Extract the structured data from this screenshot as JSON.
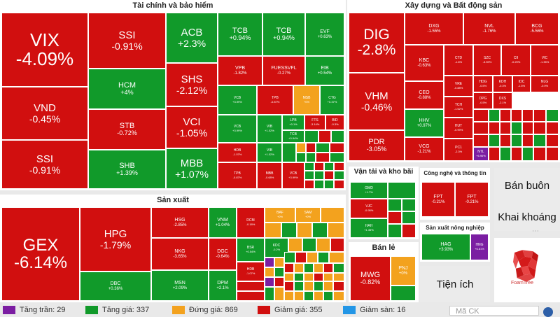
{
  "sections": {
    "finance": "Tài chính và bảo hiểm",
    "realestate": "Xây dựng và Bất động sản",
    "manufacturing": "Sản xuất",
    "transport": "Vận tải và kho bãi",
    "tech": "Công nghệ và thông tin",
    "retail": "Bán lẻ",
    "agri": "Sản xuất nông nghiệp",
    "wholesale": "Bán buôn",
    "mining": "Khai khoáng",
    "utilities": "Tiện ích"
  },
  "tiles": {
    "vix": {
      "t": "VIX",
      "c": "-4.09%"
    },
    "vnd": {
      "t": "VND",
      "c": "-0.45%"
    },
    "ssi1": {
      "t": "SSI",
      "c": "-0.91%"
    },
    "ssi2": {
      "t": "SSI",
      "c": "-0.91%"
    },
    "hcm": {
      "t": "HCM",
      "c": "+4%"
    },
    "stb": {
      "t": "STB",
      "c": "-0.72%"
    },
    "shb": {
      "t": "SHB",
      "c": "+1.39%"
    },
    "acb": {
      "t": "ACB",
      "c": "+2.3%"
    },
    "shs": {
      "t": "SHS",
      "c": "-2.12%"
    },
    "vci": {
      "t": "VCI",
      "c": "-1.05%"
    },
    "mbb": {
      "t": "MBB",
      "c": "+1.07%"
    },
    "tcb1": {
      "t": "TCB",
      "c": "+0.94%"
    },
    "tcb2": {
      "t": "TCB",
      "c": "+0.94%"
    },
    "evf": {
      "t": "EVF",
      "c": "+0.63%"
    },
    "vpb": {
      "t": "VPB",
      "c": "-1.82%"
    },
    "fuessvfl": {
      "t": "FUESSVFL",
      "c": "-0.27%"
    },
    "eib": {
      "t": "EIB",
      "c": "+0.54%"
    },
    "vcb1": {
      "t": "VCB",
      "c": "+3.99%"
    },
    "tpb1": {
      "t": "TPB",
      "c": "-0.87%"
    },
    "msb": {
      "t": "MSB",
      "c": "+0%"
    },
    "ctg": {
      "t": "CTG",
      "c": "+0.37%"
    },
    "vcb2": {
      "t": "VCB",
      "c": "+3.99%"
    },
    "vib": {
      "t": "VIB",
      "c": "+1.02%"
    },
    "lpb": {
      "t": "LPB",
      "c": "+0.1%"
    },
    "fts": {
      "t": "FTS",
      "c": "-3.14%"
    },
    "bid": {
      "t": "BID",
      "c": "-0.3%"
    },
    "tcb3": {
      "t": "TCB",
      "c": "+0.94%"
    },
    "vib2": {
      "t": "VIB",
      "c": "+1.02%"
    },
    "hdb": {
      "t": "HDB",
      "c": "-1.07%"
    },
    "tpb2": {
      "t": "TPB",
      "c": "-0.87%"
    },
    "mbb2": {
      "t": "MBB",
      "c": "-0.68%"
    },
    "vcb3": {
      "t": "VCB",
      "c": "+3.99%"
    },
    "dig": {
      "t": "DIG",
      "c": "-2.8%"
    },
    "vhm": {
      "t": "VHM",
      "c": "-0.46%"
    },
    "pdr": {
      "t": "PDR",
      "c": "-3.05%"
    },
    "dxg": {
      "t": "DXG",
      "c": "-1.55%"
    },
    "nvl": {
      "t": "NVL",
      "c": "-1.76%"
    },
    "bcg": {
      "t": "BCG",
      "c": "-5.56%"
    },
    "kbc": {
      "t": "KBC",
      "c": "-0.63%"
    },
    "ctd": {
      "t": "CTD",
      "c": "-1.8%"
    },
    "szc": {
      "t": "SZC",
      "c": "-3.59%"
    },
    "cii": {
      "t": "CII",
      "c": "-0.29%"
    },
    "vic": {
      "t": "VIC",
      "c": "-1.35%"
    },
    "ceo": {
      "t": "CEO",
      "c": "-0.88%"
    },
    "vre": {
      "t": "VRE",
      "c": "-0.88%"
    },
    "hhv": {
      "t": "HHV",
      "c": "+0.97%"
    },
    "tch": {
      "t": "TCH",
      "c": "-1.52%"
    },
    "hut": {
      "t": "HUT",
      "c": "-0.99%"
    },
    "vcg": {
      "t": "VCG",
      "c": "-1.21%"
    },
    "pc1": {
      "t": "PC1",
      "c": "-2.3%"
    },
    "ntl": {
      "t": "NTL",
      "c": "+6.96%"
    },
    "hdg": {
      "t": "HDG",
      "c": "-0.5%"
    },
    "kdh": {
      "t": "KDH",
      "c": "-0.3%"
    },
    "idc": {
      "t": "IDC",
      "c": "-1.5%"
    },
    "nlg": {
      "t": "NLG",
      "c": "-0.9%"
    },
    "dpg": {
      "t": "DPG",
      "c": "-0.5%"
    },
    "dxs": {
      "t": "DXS",
      "c": "-2.1%"
    },
    "gex": {
      "t": "GEX",
      "c": "-6.14%"
    },
    "hpg": {
      "t": "HPG",
      "c": "-1.79%"
    },
    "dbc": {
      "t": "DBC",
      "c": "+0.36%"
    },
    "hsg": {
      "t": "HSG",
      "c": "-2.85%"
    },
    "nkg": {
      "t": "NKG",
      "c": "-3.65%"
    },
    "msn": {
      "t": "MSN",
      "c": "+2.09%"
    },
    "vnm": {
      "t": "VNM",
      "c": "+1.04%"
    },
    "dgc": {
      "t": "DGC",
      "c": "-0.64%"
    },
    "dpm": {
      "t": "DPM",
      "c": "+2.1%"
    },
    "dcm": {
      "t": "DCM",
      "c": "-0.18%"
    },
    "bsr": {
      "t": "BSR",
      "c": "+0.54%"
    },
    "hdb2": {
      "t": "HDB",
      "c": "-1.07%"
    },
    "kdc": {
      "t": "KDC",
      "c": "-0.2%"
    },
    "baf": {
      "t": "BAF",
      "c": "+0%"
    },
    "sam": {
      "t": "SAM",
      "c": "+0%"
    },
    "gmd": {
      "t": "GMD",
      "c": "+1.7%"
    },
    "vjc": {
      "t": "VJC",
      "c": "-0.95%"
    },
    "hah": {
      "t": "HAH",
      "c": "+1.35%"
    },
    "fpt1": {
      "t": "FPT",
      "c": "-0.21%"
    },
    "fpt2": {
      "t": "FPT",
      "c": "-0.21%"
    },
    "mwg": {
      "t": "MWG",
      "c": "-0.82%"
    },
    "pnj": {
      "t": "PNJ",
      "c": "+0%"
    },
    "hag": {
      "t": "HAG",
      "c": "+3.93%"
    },
    "hng": {
      "t": "HNG",
      "c": "+6.81%"
    }
  },
  "legend": [
    {
      "label": "Tăng trần: 29",
      "color": "#7b1ea2"
    },
    {
      "label": "Tăng giá: 337",
      "color": "#119a2a"
    },
    {
      "label": "Đứng giá: 869",
      "color": "#f3a21e"
    },
    {
      "label": "Giảm giá: 355",
      "color": "#d10f0f"
    },
    {
      "label": "Giảm sàn: 16",
      "color": "#2396e6"
    }
  ],
  "search": {
    "placeholder": "Mã CK"
  },
  "logo": {
    "text": "FoamTree"
  },
  "colors": {
    "up": "#119a2a",
    "down": "#d10f0f",
    "flat": "#f3a21e",
    "ceiling": "#7b1ea2",
    "floor": "#2396e6"
  }
}
